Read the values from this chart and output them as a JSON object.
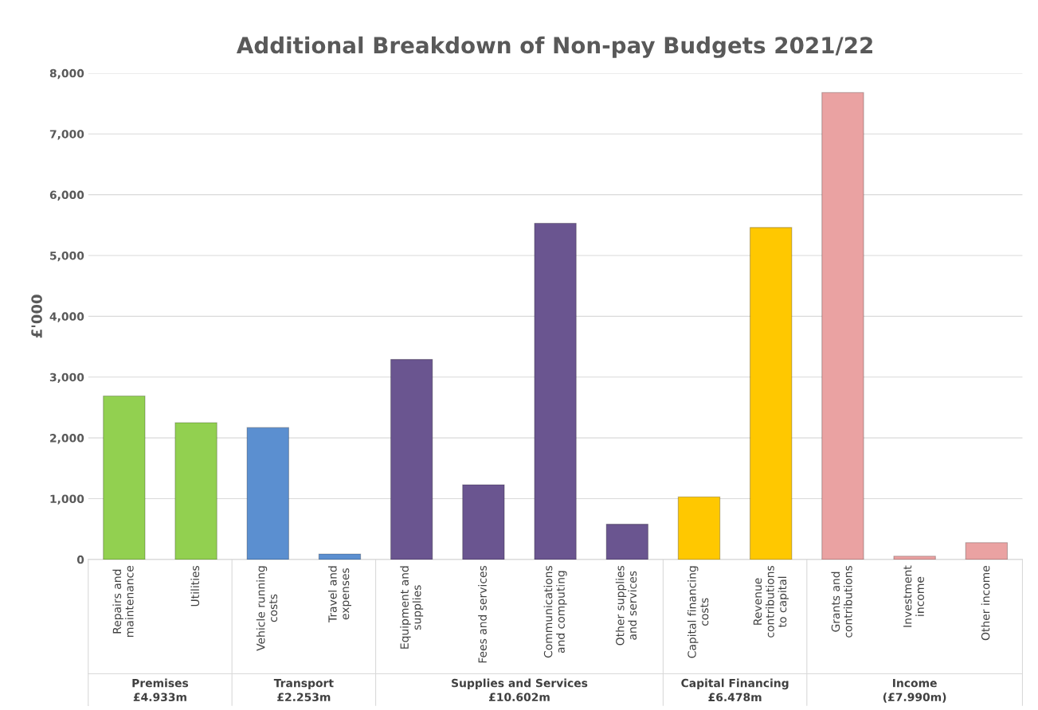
{
  "chart_data": {
    "type": "bar",
    "title": "Additional Breakdown of Non-pay Budgets 2021/22",
    "ylabel": "£'000",
    "categories": [
      "Repairs and\nmaintenance",
      "Utilities",
      "Vehicle running\ncosts",
      "Travel and\nexpenses",
      "Equipment and\nsupplies",
      "Fees and services",
      "Communications\nand computing",
      "Other supplies\nand services",
      "Capital financing\ncosts",
      "Revenue\ncontributions\nto capital",
      "Grants and\ncontributions",
      "Investment\nincome",
      "Other income"
    ],
    "values": [
      2690,
      2250,
      2170,
      90,
      3290,
      1230,
      5530,
      580,
      1030,
      5460,
      7680,
      55,
      277
    ],
    "colors": [
      "#92d050",
      "#92d050",
      "#5b8fd0",
      "#5b8fd0",
      "#6a5590",
      "#6a5590",
      "#6a5590",
      "#6a5590",
      "#ffc800",
      "#ffc800",
      "#eaa2a2",
      "#eaa2a2",
      "#eaa2a2"
    ],
    "ylim": [
      0,
      8000
    ],
    "yticks": [
      {
        "value": 0,
        "label": "0"
      },
      {
        "value": 1000,
        "label": "1,000"
      },
      {
        "value": 2000,
        "label": "2,000"
      },
      {
        "value": 3000,
        "label": "3,000"
      },
      {
        "value": 4000,
        "label": "4,000"
      },
      {
        "value": 5000,
        "label": "5,000"
      },
      {
        "value": 6000,
        "label": "6,000"
      },
      {
        "value": 7000,
        "label": "7,000"
      },
      {
        "value": 8000,
        "label": "8,000"
      }
    ],
    "grid": "y",
    "annotations": [
      "Premises\n£4.933m",
      "Transport\n£2.253m",
      "Supplies and Services\n£10.602m",
      "Capital Financing\n£6.478m",
      "Income\n(£7.990m)"
    ]
  }
}
